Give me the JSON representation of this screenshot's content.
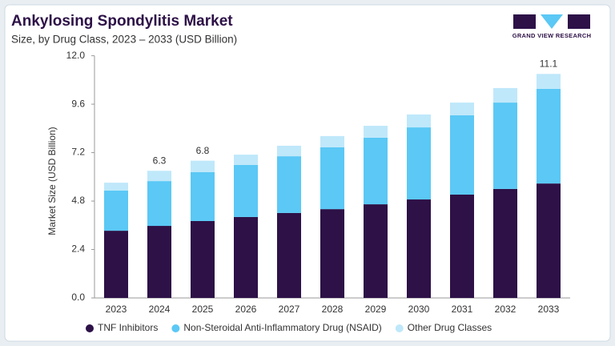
{
  "brand": "GRAND VIEW RESEARCH",
  "chart_data": {
    "type": "stacked-bar",
    "title": "Ankylosing Spondylitis Market",
    "subtitle": "Size, by Drug Class, 2023 – 2033 (USD Billion)",
    "y_label": "Market Size (USD Billion)",
    "categories": [
      "2023",
      "2024",
      "2025",
      "2026",
      "2027",
      "2028",
      "2029",
      "2030",
      "2031",
      "2032",
      "2033"
    ],
    "series": [
      {
        "name": "TNF Inhibitors",
        "color": "#2d1147",
        "values": [
          3.33,
          3.57,
          3.81,
          4.01,
          4.21,
          4.4,
          4.64,
          4.88,
          5.12,
          5.4,
          5.67
        ]
      },
      {
        "name": "Non-Steroidal Anti-Inflammatory Drug (NSAID)",
        "color": "#5bc8f5",
        "values": [
          1.99,
          2.22,
          2.42,
          2.58,
          2.81,
          3.06,
          3.3,
          3.57,
          3.93,
          4.28,
          4.69
        ]
      },
      {
        "name": "Other Drug Classes",
        "color": "#bfe8fa",
        "values": [
          0.39,
          0.51,
          0.57,
          0.51,
          0.52,
          0.56,
          0.59,
          0.64,
          0.63,
          0.72,
          0.74
        ]
      }
    ],
    "total_labels": [
      null,
      6.3,
      6.8,
      null,
      null,
      null,
      null,
      null,
      null,
      null,
      11.1
    ],
    "ylim": [
      0,
      12
    ],
    "yticks": [
      {
        "value": 0,
        "label": "0.0"
      },
      2.4,
      4.8,
      7.2,
      9.6,
      {
        "value": 12,
        "label": "12.0"
      }
    ],
    "grid": false
  }
}
